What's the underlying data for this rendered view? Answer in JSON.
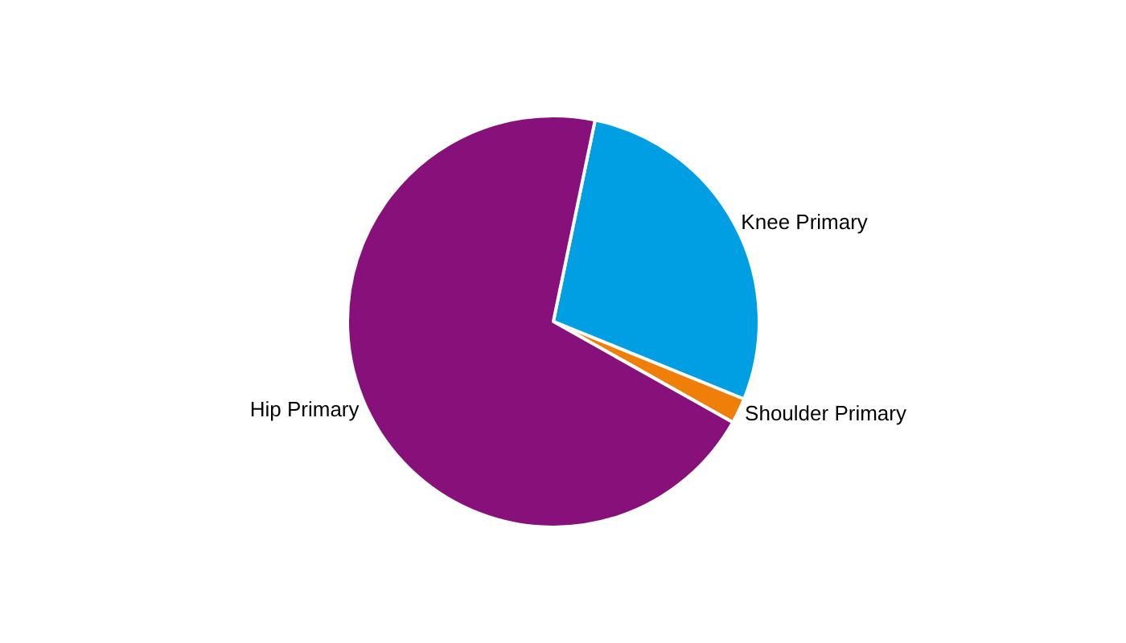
{
  "chart_data": {
    "type": "pie",
    "categories": [
      "Knee Primary",
      "Shoulder Primary",
      "Hip Primary"
    ],
    "values": [
      27.9,
      2.0,
      70.1
    ],
    "colors": [
      "#009fe3",
      "#f07f09",
      "#87107a"
    ],
    "legend": false
  }
}
